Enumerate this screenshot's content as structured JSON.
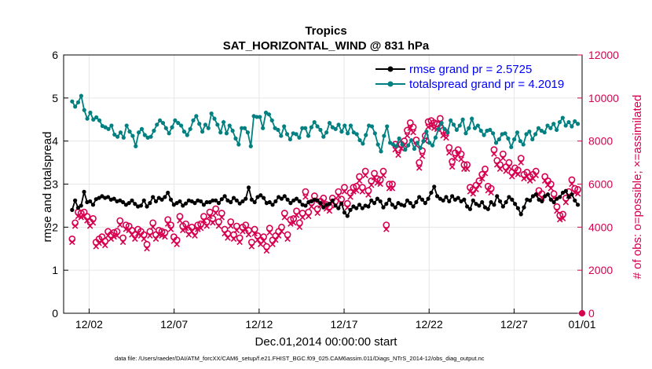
{
  "chart_data": {
    "type": "line",
    "title": "Tropics",
    "subtitle": "SAT_HORIZONTAL_WIND @ 831 hPa",
    "xlabel": "Dec.01,2014 00:00:00 start",
    "ylabel": "rmse and totalspread",
    "y2label": "# of obs: o=possible; ×=assimilated",
    "xlim": [
      0.5,
      31
    ],
    "ylim": [
      0,
      6
    ],
    "y2lim": [
      0,
      12000
    ],
    "x_ticks": [
      2,
      7,
      12,
      17,
      22,
      27,
      31
    ],
    "x_tick_labels": [
      "12/02",
      "12/07",
      "12/12",
      "12/17",
      "12/22",
      "12/27",
      "01/01"
    ],
    "y_ticks": [
      "0",
      "1",
      "2",
      "3",
      "4",
      "5",
      "6"
    ],
    "y2_ticks": [
      "0",
      "2000",
      "4000",
      "6000",
      "8000",
      "10000",
      "12000"
    ],
    "grid": true,
    "legend_position": "top-right",
    "footnote": "data file: /Users/raeder/DAI/ATM_forcXX/CAM6_setup/f.e21.FHIST_BGC.f09_025.CAM6assim.011/Diags_NTrS_2014-12/obs_diag_output.nc",
    "colors": {
      "rmse": "#000000",
      "spread": "#008080",
      "obs": "#d6004f",
      "legend_text": "#0000ff"
    },
    "series": [
      {
        "name": "rmse grand pr = 2.5725",
        "axis": "left",
        "color": "#000000",
        "values": [
          2.4,
          2.62,
          2.45,
          2.5,
          2.82,
          2.58,
          2.6,
          2.52,
          2.65,
          2.68,
          2.72,
          2.68,
          2.7,
          2.64,
          2.66,
          2.6,
          2.62,
          2.58,
          2.52,
          2.56,
          2.62,
          2.54,
          2.48,
          2.5,
          2.62,
          2.48,
          2.56,
          2.7,
          2.6,
          2.68,
          2.64,
          2.7,
          2.8,
          2.64,
          2.52,
          2.56,
          2.6,
          2.5,
          2.55,
          2.62,
          2.6,
          2.56,
          2.62,
          2.6,
          2.52,
          2.58,
          2.58,
          2.62,
          2.62,
          2.56,
          2.65,
          2.72,
          2.62,
          2.58,
          2.68,
          2.62,
          2.55,
          2.6,
          2.66,
          2.92,
          2.64,
          2.58,
          2.7,
          2.74,
          2.68,
          2.56,
          2.58,
          2.52,
          2.6,
          2.7,
          2.66,
          2.72,
          2.64,
          2.56,
          2.62,
          2.66,
          2.6,
          2.52,
          2.5,
          2.58,
          2.6,
          2.64,
          2.62,
          2.56,
          2.46,
          2.52,
          2.54,
          2.62,
          2.5,
          2.44,
          2.55,
          2.34,
          2.26,
          2.4,
          2.48,
          2.44,
          2.52,
          2.44,
          2.5,
          2.48,
          2.62,
          2.56,
          2.66,
          2.6,
          2.46,
          2.54,
          2.64,
          2.52,
          2.46,
          2.56,
          2.52,
          2.5,
          2.62,
          2.56,
          2.48,
          2.58,
          2.7,
          2.64,
          2.56,
          2.66,
          2.8,
          2.94,
          2.72,
          2.66,
          2.62,
          2.7,
          2.6,
          2.72,
          2.64,
          2.68,
          2.6,
          2.64,
          2.48,
          2.42,
          2.62,
          2.54,
          2.5,
          2.58,
          2.46,
          2.42,
          2.58,
          2.52,
          2.72,
          2.6,
          2.48,
          2.58,
          2.7,
          2.64,
          2.54,
          2.44,
          2.3,
          2.46,
          2.64,
          2.62,
          2.72,
          2.76,
          2.64,
          2.6,
          2.72,
          2.76,
          2.64,
          2.58,
          2.66,
          2.7,
          2.8,
          2.84,
          2.7,
          2.76,
          2.62,
          2.52
        ]
      },
      {
        "name": "totalspread grand pr = 4.2019",
        "axis": "left",
        "color": "#008080",
        "values": [
          4.92,
          4.8,
          4.9,
          5.05,
          4.72,
          4.52,
          4.66,
          4.5,
          4.55,
          4.48,
          4.35,
          4.32,
          4.28,
          4.36,
          4.15,
          4.1,
          4.2,
          4.08,
          4.36,
          4.22,
          4.12,
          3.88,
          4.2,
          4.28,
          4.14,
          4.08,
          4.1,
          4.24,
          4.38,
          4.48,
          4.42,
          4.3,
          4.18,
          4.32,
          4.48,
          4.42,
          4.36,
          4.22,
          4.14,
          4.28,
          4.48,
          4.58,
          4.4,
          4.22,
          4.38,
          4.3,
          4.64,
          4.52,
          4.38,
          4.2,
          4.44,
          4.18,
          4.36,
          4.24,
          4.06,
          3.92,
          4.3,
          4.3,
          4.2,
          3.88,
          4.58,
          4.56,
          4.56,
          4.3,
          4.66,
          4.62,
          4.48,
          4.3,
          4.26,
          4.12,
          4.34,
          4.16,
          4.04,
          4.18,
          4.16,
          4.08,
          4.3,
          4.3,
          4.12,
          4.32,
          4.44,
          4.34,
          4.26,
          4.1,
          4.2,
          4.42,
          4.32,
          4.28,
          4.38,
          4.22,
          4.36,
          4.18,
          4.36,
          4.2,
          4.16,
          4.02,
          3.94,
          4.14,
          4.36,
          4.34,
          4.18,
          3.92,
          3.76,
          4.12,
          4.34,
          3.96,
          3.92,
          3.88,
          4.06,
          3.92,
          3.8,
          3.9,
          4.02,
          3.82,
          3.96,
          3.84,
          4.0,
          4.22,
          3.96,
          3.9,
          4.08,
          4.28,
          4.42,
          4.28,
          4.2,
          4.48,
          4.38,
          4.26,
          4.36,
          4.5,
          4.18,
          4.3,
          4.52,
          4.3,
          4.36,
          4.24,
          4.14,
          4.24,
          4.26,
          4.18,
          3.96,
          4.04,
          4.16,
          4.18,
          4.06,
          3.86,
          4.04,
          4.2,
          4.0,
          3.92,
          4.16,
          4.22,
          4.04,
          4.16,
          4.3,
          4.24,
          4.2,
          4.36,
          4.3,
          4.4,
          4.26,
          4.44,
          4.54,
          4.36,
          4.44,
          4.34,
          4.46,
          4.4
        ]
      },
      {
        "name": "# of obs possible",
        "axis": "right",
        "color": "#d6004f",
        "marker": "circle",
        "values": [
          3450,
          4200,
          4700,
          4650,
          4700,
          4500,
          4250,
          4400,
          3300,
          3450,
          3550,
          3350,
          3800,
          3650,
          3750,
          3800,
          4300,
          3500,
          4100,
          4050,
          3850,
          3650,
          3900,
          3800,
          3650,
          3200,
          3800,
          4200,
          3650,
          3850,
          3800,
          3750,
          4350,
          4100,
          3550,
          3400,
          4500,
          4050,
          4150,
          3850,
          4000,
          3800,
          4100,
          4150,
          4500,
          4250,
          4700,
          4400,
          4850,
          4250,
          4650,
          3900,
          3700,
          4250,
          3650,
          4050,
          3500,
          4000,
          4100,
          3850,
          3300,
          3900,
          3600,
          3400,
          3550,
          3100,
          3950,
          3400,
          3600,
          3800,
          4000,
          4650,
          3650,
          4350,
          4400,
          4750,
          4200,
          4650,
          5650,
          4700,
          5150,
          5450,
          4850,
          5200,
          5350,
          5050,
          4950,
          5350,
          5200,
          5650,
          5300,
          5850,
          5100,
          5600,
          5850,
          5900,
          6350,
          5850,
          6600,
          5700,
          6150,
          6500,
          6250,
          6200,
          6600,
          4100,
          6000,
          6000,
          7850,
          7600,
          7850,
          8000,
          8500,
          8850,
          8650,
          8050,
          7000,
          7550,
          8250,
          8900,
          8950,
          8850,
          8800,
          9050,
          8500,
          8400,
          7700,
          7050,
          7450,
          7600,
          7400,
          6900,
          6900,
          5850,
          5750,
          5950,
          6150,
          6450,
          6700,
          5900,
          5800,
          7600,
          7100,
          6900,
          7400,
          6800,
          7000,
          6550,
          6750,
          6650,
          7200,
          6450,
          6550,
          6350,
          6450,
          6600,
          5700,
          5550,
          6350,
          6150,
          6000,
          5550,
          4950,
          4550,
          4600,
          5350,
          5650,
          6200,
          5800,
          5750
        ]
      },
      {
        "name": "# of obs assimilated",
        "axis": "right",
        "color": "#d6004f",
        "marker": "x",
        "values": [
          3450,
          4200,
          4650,
          4600,
          4650,
          4450,
          4200,
          4350,
          3250,
          3400,
          3500,
          3300,
          3750,
          3600,
          3700,
          3750,
          4250,
          3450,
          4050,
          4000,
          3800,
          3600,
          3850,
          3750,
          3600,
          3150,
          3750,
          4150,
          3600,
          3800,
          3750,
          3700,
          4300,
          4050,
          3500,
          3350,
          4450,
          4000,
          4100,
          3800,
          3950,
          3750,
          4050,
          4100,
          4450,
          4200,
          4650,
          4350,
          4800,
          4200,
          4600,
          3850,
          3650,
          4200,
          3600,
          4000,
          3450,
          3950,
          4050,
          3800,
          3250,
          3850,
          3550,
          3350,
          3500,
          3050,
          3900,
          3350,
          3550,
          3750,
          3950,
          4600,
          3600,
          4300,
          4350,
          4700,
          4150,
          4600,
          5550,
          4650,
          5100,
          5400,
          4800,
          5150,
          5300,
          5000,
          4900,
          5300,
          5150,
          5600,
          5250,
          5800,
          5050,
          5550,
          5800,
          5850,
          6300,
          5800,
          6550,
          5650,
          6100,
          6450,
          6200,
          6150,
          6550,
          4050,
          5950,
          5950,
          7750,
          7500,
          7800,
          7950,
          8400,
          8750,
          8550,
          7950,
          6900,
          7450,
          8150,
          8800,
          8850,
          8750,
          8700,
          8950,
          8400,
          8300,
          7600,
          6950,
          7350,
          7500,
          7300,
          6850,
          6850,
          5800,
          5700,
          5900,
          6100,
          6400,
          6650,
          5850,
          5750,
          7550,
          7050,
          6850,
          7350,
          6750,
          6950,
          6500,
          6700,
          6600,
          7150,
          6400,
          6500,
          6300,
          6400,
          6550,
          5650,
          5500,
          6300,
          6100,
          5950,
          5500,
          4900,
          4500,
          4550,
          5300,
          5600,
          6150,
          5750,
          5700
        ]
      }
    ],
    "extra_points": [
      {
        "series": "# of obs possible",
        "x": 31,
        "y2": 0
      }
    ]
  }
}
